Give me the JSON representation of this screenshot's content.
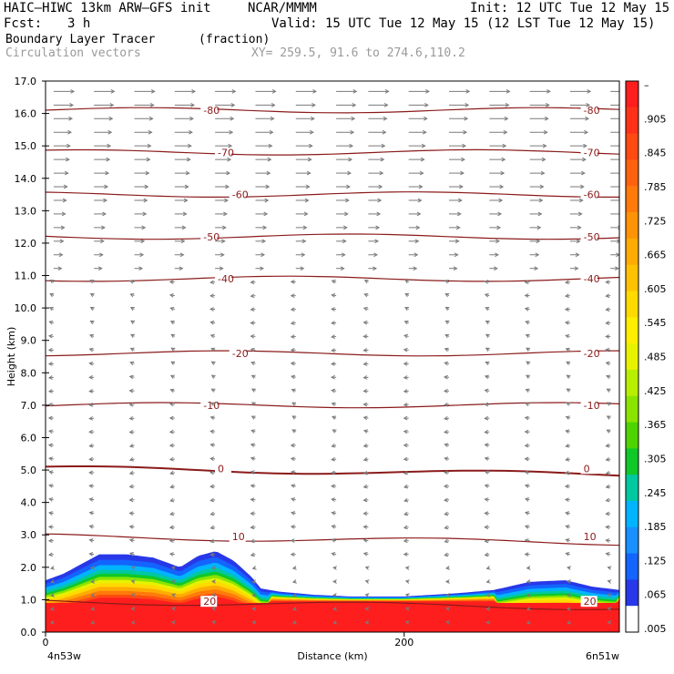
{
  "header": {
    "model": "HAIC–HIWC 13km ARW–GFS init",
    "producer": "NCAR/MMMM",
    "init": "Init: 12 UTC Tue 12 May 15",
    "fcst_label": "Fcst:",
    "fcst_value": "3 h",
    "valid": "Valid: 15 UTC Tue 12 May 15 (12 LST Tue 12 May 15)",
    "field": "Boundary Layer Tracer",
    "field_units": "(fraction)",
    "vectors": "Circulation vectors",
    "xy": "XY= 259.5, 91.6 to 274.6,110.2"
  },
  "chart_data": {
    "type": "heatmap",
    "xlabel": "Distance (km)",
    "ylabel": "Height (km)",
    "xlim": [
      0,
      320
    ],
    "ylim": [
      0,
      17
    ],
    "x_ticks": [
      0,
      200
    ],
    "y_ticks": [
      "0.0",
      "1.0",
      "2.0",
      "3.0",
      "4.0",
      "5.0",
      "6.0",
      "7.0",
      "8.0",
      "9.0",
      "10.0",
      "11.0",
      "12.0",
      "13.0",
      "14.0",
      "15.0",
      "16.0",
      "17.0"
    ],
    "left_endpoint": "4n53w",
    "right_endpoint": "6n51w",
    "colorbar": {
      "labels": [
        "–",
        ".905",
        ".845",
        ".785",
        ".725",
        ".665",
        ".605",
        ".545",
        ".485",
        ".425",
        ".365",
        ".305",
        ".245",
        ".185",
        ".125",
        ".065",
        ".005"
      ],
      "colors": [
        "#ff1e1e",
        "#ff3218",
        "#ff4a12",
        "#ff620e",
        "#ff7a0a",
        "#ff9306",
        "#ffab04",
        "#ffc202",
        "#ffda00",
        "#ffee00",
        "#e6f200",
        "#b8ee00",
        "#8ae400",
        "#4ed400",
        "#10c828",
        "#00c8a0",
        "#00b4ff",
        "#1890ff",
        "#1464ff",
        "#2838e8",
        "#ffffff"
      ]
    },
    "temperature_contours": [
      {
        "label": "-80",
        "height": 16.1
      },
      {
        "label": "-70",
        "height": 14.8
      },
      {
        "label": "-60",
        "height": 13.5
      },
      {
        "label": "-50",
        "height": 12.2
      },
      {
        "label": "-40",
        "height": 10.9
      },
      {
        "label": "-20",
        "height": 8.6
      },
      {
        "label": "-10",
        "height": 7.0
      },
      {
        "label": "0",
        "height": 5.05
      },
      {
        "label": "10",
        "height": 2.95
      },
      {
        "label": "20",
        "height": 0.95
      }
    ],
    "tracer_top_profile": {
      "x": [
        0,
        10,
        20,
        30,
        45,
        60,
        75,
        85,
        95,
        105,
        115,
        120,
        130,
        150,
        170,
        200,
        230,
        250,
        270,
        290,
        305,
        320
      ],
      "top_km": [
        1.6,
        1.8,
        2.1,
        2.4,
        2.4,
        2.3,
        2.0,
        2.35,
        2.5,
        2.2,
        1.7,
        1.35,
        1.25,
        1.15,
        1.1,
        1.1,
        1.2,
        1.3,
        1.55,
        1.6,
        1.4,
        1.3
      ]
    }
  }
}
